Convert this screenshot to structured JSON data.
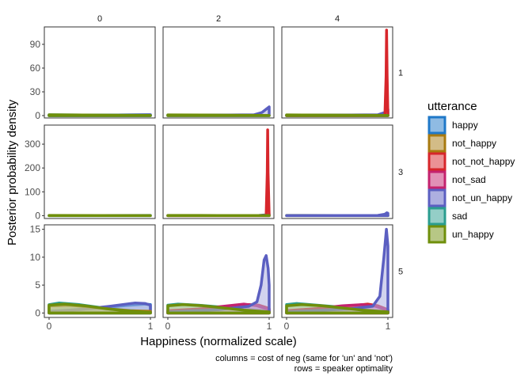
{
  "chart_data": {
    "type": "area",
    "title": "",
    "xlabel": "Happiness (normalized scale)",
    "ylabel": "Posterior probability density",
    "caption_lines": [
      "columns = cost of neg (same for 'un' and 'not')",
      "rows = speaker optimality"
    ],
    "column_labels": [
      "0",
      "2",
      "4"
    ],
    "row_labels": [
      "1",
      "3",
      "5"
    ],
    "x_ticks": [
      0,
      1
    ],
    "x_tick_labels": [
      "0",
      "1"
    ],
    "xlim": [
      0,
      1
    ],
    "rows": [
      {
        "ylim": [
          -3,
          112
        ],
        "yticks": [
          0,
          30,
          60,
          90
        ],
        "ytick_labels": [
          "0",
          "30",
          "60",
          "90"
        ]
      },
      {
        "ylim": [
          -12,
          380
        ],
        "yticks": [
          0,
          100,
          200,
          300
        ],
        "ytick_labels": [
          "0",
          "100",
          "200",
          "300"
        ]
      },
      {
        "ylim": [
          -0.8,
          15.8
        ],
        "yticks": [
          0,
          5,
          10,
          15
        ],
        "ytick_labels": [
          "0",
          "5",
          "10",
          "15"
        ]
      }
    ],
    "legend": {
      "title": "utterance",
      "position": "right",
      "items": [
        {
          "name": "happy",
          "color": "#1f78c8",
          "fill": "#8fbbe3"
        },
        {
          "name": "not_happy",
          "color": "#a87a10",
          "fill": "#d3bc87"
        },
        {
          "name": "not_not_happy",
          "color": "#d7262b",
          "fill": "#eb9295"
        },
        {
          "name": "not_sad",
          "color": "#c4226e",
          "fill": "#e190b6"
        },
        {
          "name": "not_un_happy",
          "color": "#5b5fc1",
          "fill": "#adafe0"
        },
        {
          "name": "sad",
          "color": "#2a9d8f",
          "fill": "#94cec7"
        },
        {
          "name": "un_happy",
          "color": "#6f8f0b",
          "fill": "#b7c785"
        }
      ]
    },
    "panels": [
      {
        "row": 0,
        "col": 0,
        "series": [
          {
            "name": "happy",
            "points": [
              [
                0,
                0.3
              ],
              [
                0.5,
                0.6
              ],
              [
                1,
                1.0
              ]
            ]
          },
          {
            "name": "not_un_happy",
            "points": [
              [
                0,
                0.2
              ],
              [
                0.5,
                0.6
              ],
              [
                1,
                1.0
              ]
            ]
          },
          {
            "name": "sad",
            "points": [
              [
                0,
                1.0
              ],
              [
                0.5,
                0.6
              ],
              [
                1,
                0.2
              ]
            ]
          },
          {
            "name": "un_happy",
            "points": [
              [
                0,
                1.0
              ],
              [
                0.5,
                0.6
              ],
              [
                1,
                0.2
              ]
            ]
          }
        ]
      },
      {
        "row": 0,
        "col": 1,
        "series": [
          {
            "name": "sad",
            "points": [
              [
                0,
                0.8
              ],
              [
                0.5,
                0.6
              ],
              [
                0.9,
                0.3
              ],
              [
                1,
                0.1
              ]
            ]
          },
          {
            "name": "not_un_happy",
            "points": [
              [
                0,
                0.3
              ],
              [
                0.5,
                0.6
              ],
              [
                0.85,
                1.0
              ],
              [
                0.93,
                4.0
              ],
              [
                0.98,
                9.0
              ],
              [
                1,
                11.0
              ]
            ]
          },
          {
            "name": "un_happy",
            "points": [
              [
                0,
                0.9
              ],
              [
                0.5,
                0.6
              ],
              [
                0.9,
                0.3
              ],
              [
                1,
                0.1
              ]
            ]
          }
        ]
      },
      {
        "row": 0,
        "col": 2,
        "series": [
          {
            "name": "sad",
            "points": [
              [
                0,
                0.8
              ],
              [
                0.5,
                0.6
              ],
              [
                1,
                0.2
              ]
            ]
          },
          {
            "name": "not_un_happy",
            "points": [
              [
                0,
                0.3
              ],
              [
                0.5,
                0.6
              ],
              [
                0.9,
                1.0
              ],
              [
                0.97,
                4.0
              ],
              [
                1,
                8.0
              ]
            ]
          },
          {
            "name": "not_not_happy",
            "points": [
              [
                0,
                0
              ],
              [
                0.97,
                0
              ],
              [
                0.982,
                50.0
              ],
              [
                0.987,
                108.0
              ],
              [
                0.992,
                50.0
              ],
              [
                1,
                0
              ]
            ]
          },
          {
            "name": "un_happy",
            "points": [
              [
                0,
                0.9
              ],
              [
                0.5,
                0.6
              ],
              [
                1,
                0.2
              ]
            ]
          }
        ]
      },
      {
        "row": 1,
        "col": 0,
        "series": [
          {
            "name": "happy",
            "points": [
              [
                0,
                0.3
              ],
              [
                0.5,
                0.6
              ],
              [
                1,
                1.0
              ]
            ]
          },
          {
            "name": "un_happy",
            "points": [
              [
                0,
                1.0
              ],
              [
                0.5,
                0.6
              ],
              [
                1,
                0.5
              ]
            ]
          }
        ]
      },
      {
        "row": 1,
        "col": 1,
        "series": [
          {
            "name": "not_un_happy",
            "points": [
              [
                0,
                0.2
              ],
              [
                0.9,
                0.8
              ],
              [
                0.96,
                3.0
              ],
              [
                1,
                6.0
              ]
            ]
          },
          {
            "name": "not_not_happy",
            "points": [
              [
                0,
                0
              ],
              [
                0.97,
                0
              ],
              [
                0.981,
                180.0
              ],
              [
                0.985,
                360.0
              ],
              [
                0.989,
                180.0
              ],
              [
                1,
                0
              ]
            ]
          },
          {
            "name": "un_happy",
            "points": [
              [
                0,
                1.0
              ],
              [
                0.5,
                0.6
              ],
              [
                1,
                0.5
              ]
            ]
          }
        ]
      },
      {
        "row": 1,
        "col": 2,
        "series": [
          {
            "name": "un_happy",
            "points": [
              [
                0,
                1.0
              ],
              [
                0.5,
                0.6
              ],
              [
                1,
                0.5
              ]
            ]
          },
          {
            "name": "not_un_happy",
            "points": [
              [
                0,
                0.2
              ],
              [
                0.9,
                1.0
              ],
              [
                0.97,
                6.0
              ],
              [
                0.99,
                12.0
              ],
              [
                1,
                10.0
              ]
            ]
          }
        ]
      },
      {
        "row": 2,
        "col": 0,
        "series": [
          {
            "name": "sad",
            "points": [
              [
                0,
                1.5
              ],
              [
                0.1,
                1.8
              ],
              [
                0.3,
                1.5
              ],
              [
                0.5,
                1.0
              ],
              [
                0.7,
                0.6
              ],
              [
                0.9,
                0.3
              ],
              [
                1,
                0.2
              ]
            ]
          },
          {
            "name": "happy",
            "points": [
              [
                0,
                0.3
              ],
              [
                0.2,
                0.5
              ],
              [
                0.5,
                0.9
              ],
              [
                0.8,
                1.4
              ],
              [
                0.95,
                1.6
              ],
              [
                1,
                1.5
              ]
            ]
          },
          {
            "name": "not_un_happy",
            "points": [
              [
                0,
                0.2
              ],
              [
                0.3,
                0.6
              ],
              [
                0.6,
                1.2
              ],
              [
                0.85,
                1.8
              ],
              [
                0.95,
                1.7
              ],
              [
                1,
                1.4
              ]
            ]
          },
          {
            "name": "not_happy",
            "points": [
              [
                0,
                1.3
              ],
              [
                0.2,
                1.4
              ],
              [
                0.4,
                1.1
              ],
              [
                0.6,
                0.7
              ],
              [
                0.8,
                0.4
              ],
              [
                1,
                0.3
              ]
            ]
          },
          {
            "name": "un_happy",
            "points": [
              [
                0,
                1.4
              ],
              [
                0.15,
                1.6
              ],
              [
                0.35,
                1.3
              ],
              [
                0.55,
                0.8
              ],
              [
                0.75,
                0.4
              ],
              [
                1,
                0.1
              ]
            ]
          }
        ]
      },
      {
        "row": 2,
        "col": 1,
        "series": [
          {
            "name": "sad",
            "points": [
              [
                0,
                1.4
              ],
              [
                0.1,
                1.6
              ],
              [
                0.3,
                1.4
              ],
              [
                0.5,
                1.1
              ],
              [
                0.7,
                0.8
              ],
              [
                0.9,
                0.5
              ],
              [
                1,
                0.3
              ]
            ]
          },
          {
            "name": "not_not_happy",
            "points": [
              [
                0,
                0.3
              ],
              [
                0.3,
                0.6
              ],
              [
                0.6,
                1.1
              ],
              [
                0.8,
                1.5
              ],
              [
                0.9,
                1.4
              ],
              [
                1,
                0.8
              ]
            ]
          },
          {
            "name": "not_sad",
            "points": [
              [
                0,
                0.4
              ],
              [
                0.3,
                0.7
              ],
              [
                0.55,
                1.2
              ],
              [
                0.75,
                1.6
              ],
              [
                0.88,
                1.3
              ],
              [
                1,
                0.6
              ]
            ]
          },
          {
            "name": "not_un_happy",
            "points": [
              [
                0,
                0.2
              ],
              [
                0.5,
                0.6
              ],
              [
                0.8,
                1.2
              ],
              [
                0.88,
                2.0
              ],
              [
                0.92,
                5.0
              ],
              [
                0.95,
                9.5
              ],
              [
                0.97,
                10.3
              ],
              [
                0.99,
                8.0
              ],
              [
                1,
                5.0
              ]
            ]
          },
          {
            "name": "un_happy",
            "points": [
              [
                0,
                1.3
              ],
              [
                0.15,
                1.5
              ],
              [
                0.35,
                1.3
              ],
              [
                0.55,
                0.9
              ],
              [
                0.75,
                0.5
              ],
              [
                1,
                0.2
              ]
            ]
          }
        ]
      },
      {
        "row": 2,
        "col": 2,
        "series": [
          {
            "name": "sad",
            "points": [
              [
                0,
                1.5
              ],
              [
                0.1,
                1.7
              ],
              [
                0.3,
                1.4
              ],
              [
                0.5,
                1.1
              ],
              [
                0.7,
                0.7
              ],
              [
                0.9,
                0.4
              ],
              [
                1,
                0.2
              ]
            ]
          },
          {
            "name": "not_not_happy",
            "points": [
              [
                0,
                0.3
              ],
              [
                0.3,
                0.7
              ],
              [
                0.6,
                1.2
              ],
              [
                0.8,
                1.6
              ],
              [
                0.9,
                1.3
              ],
              [
                1,
                0.6
              ]
            ]
          },
          {
            "name": "not_sad",
            "points": [
              [
                0,
                0.4
              ],
              [
                0.3,
                0.8
              ],
              [
                0.55,
                1.3
              ],
              [
                0.75,
                1.5
              ],
              [
                0.88,
                1.2
              ],
              [
                1,
                0.5
              ]
            ]
          },
          {
            "name": "not_un_happy",
            "points": [
              [
                0,
                0.2
              ],
              [
                0.6,
                0.7
              ],
              [
                0.85,
                1.2
              ],
              [
                0.92,
                3.0
              ],
              [
                0.96,
                10.0
              ],
              [
                0.985,
                15.0
              ],
              [
                1,
                12.0
              ]
            ]
          },
          {
            "name": "un_happy",
            "points": [
              [
                0,
                1.3
              ],
              [
                0.15,
                1.5
              ],
              [
                0.35,
                1.3
              ],
              [
                0.55,
                0.9
              ],
              [
                0.75,
                0.5
              ],
              [
                1,
                0.2
              ]
            ]
          }
        ]
      }
    ]
  }
}
